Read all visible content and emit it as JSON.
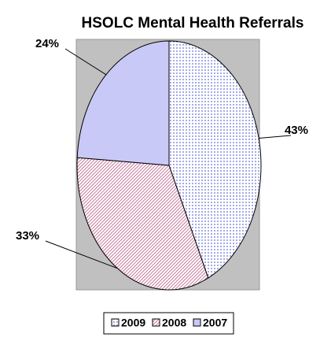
{
  "chart_data": {
    "type": "pie",
    "title": "HSOLC Mental Health Referrals",
    "categories": [
      "2009",
      "2008",
      "2007"
    ],
    "values": [
      43,
      33,
      24
    ],
    "value_labels": [
      "43%",
      "33%",
      "24%"
    ],
    "colors": [
      "#c9ccf5",
      "#e6b3c9",
      "#c9c9f7"
    ],
    "legend": "bottom"
  }
}
